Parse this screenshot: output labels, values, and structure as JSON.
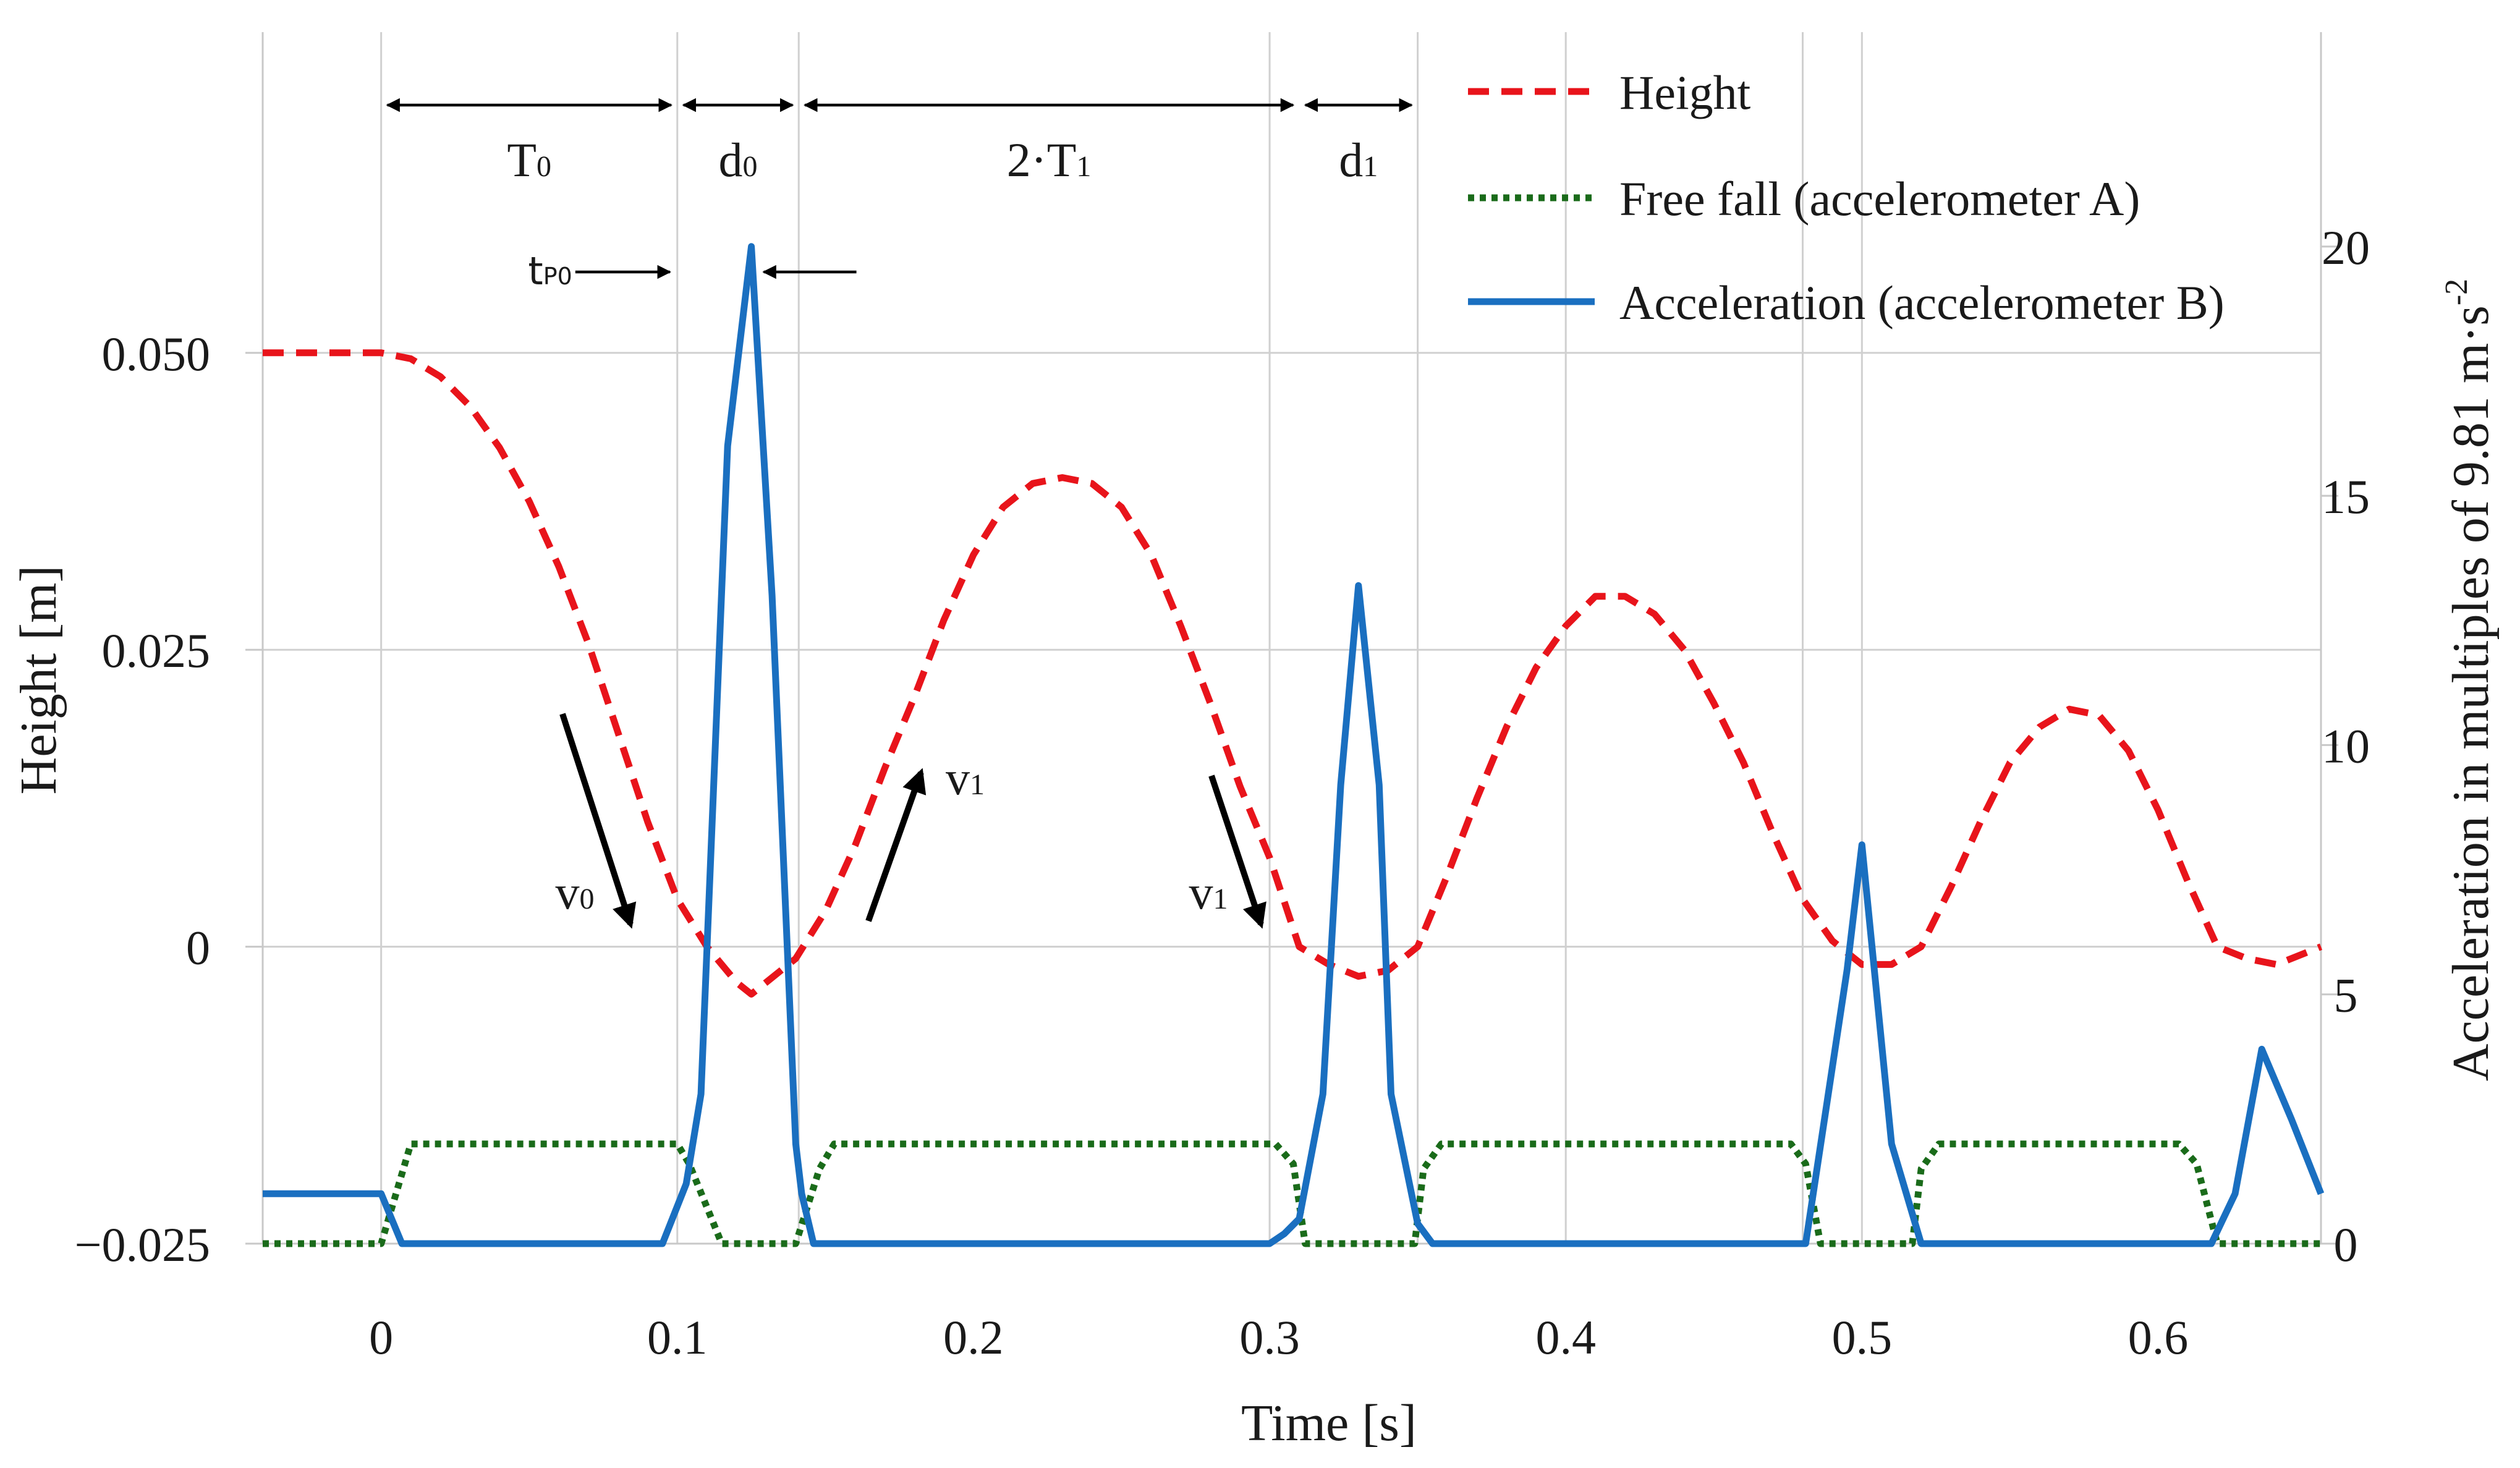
{
  "chart_data": {
    "type": "line",
    "xlabel": "Time [s]",
    "ylabel_left": "Height [m]",
    "ylabel_right": "Acceleration in multiples of 9.81 m·s",
    "ylabel_right_sup": "-2",
    "xlim": [
      -0.04,
      0.655
    ],
    "ylim_left": [
      -0.025,
      0.077
    ],
    "ylim_right": [
      0,
      24.3
    ],
    "x_ticks": [
      {
        "value": 0,
        "label": "0"
      },
      {
        "value": 0.1,
        "label": "0.1"
      },
      {
        "value": 0.2,
        "label": "0.2"
      },
      {
        "value": 0.3,
        "label": "0.3"
      },
      {
        "value": 0.4,
        "label": "0.4"
      },
      {
        "value": 0.5,
        "label": "0.5"
      },
      {
        "value": 0.6,
        "label": "0.6"
      }
    ],
    "y_left_ticks": [
      {
        "value": 0.05,
        "label": "0.050"
      },
      {
        "value": 0.025,
        "label": "0.025"
      },
      {
        "value": 0,
        "label": "0"
      },
      {
        "value": -0.025,
        "label": "−0.025"
      }
    ],
    "y_right_ticks": [
      {
        "value": 20,
        "label": "20"
      },
      {
        "value": 15,
        "label": "15"
      },
      {
        "value": 10,
        "label": "10"
      },
      {
        "value": 5,
        "label": "5"
      },
      {
        "value": 0,
        "label": "0"
      }
    ],
    "vertical_gridlines": [
      0,
      0.1,
      0.141,
      0.3,
      0.35,
      0.4,
      0.48,
      0.5
    ],
    "series": [
      {
        "name": "Height",
        "axis": "left",
        "style": "dashed",
        "color": "#e8141b",
        "x": [
          -0.04,
          0,
          0.01,
          0.02,
          0.03,
          0.04,
          0.05,
          0.06,
          0.07,
          0.08,
          0.09,
          0.1,
          0.11,
          0.12,
          0.125,
          0.13,
          0.14,
          0.15,
          0.16,
          0.17,
          0.18,
          0.19,
          0.2,
          0.21,
          0.22,
          0.23,
          0.24,
          0.25,
          0.26,
          0.27,
          0.28,
          0.29,
          0.3,
          0.31,
          0.32,
          0.33,
          0.34,
          0.35,
          0.36,
          0.37,
          0.38,
          0.39,
          0.4,
          0.41,
          0.42,
          0.43,
          0.44,
          0.45,
          0.46,
          0.47,
          0.48,
          0.49,
          0.5,
          0.51,
          0.52,
          0.53,
          0.54,
          0.55,
          0.56,
          0.57,
          0.58,
          0.59,
          0.6,
          0.61,
          0.62,
          0.63,
          0.64,
          0.655
        ],
        "y": [
          0.05,
          0.05,
          0.0495,
          0.048,
          0.0455,
          0.042,
          0.0375,
          0.032,
          0.0255,
          0.018,
          0.0105,
          0.004,
          0.0,
          -0.003,
          -0.004,
          -0.003,
          -0.001,
          0.003,
          0.0085,
          0.015,
          0.021,
          0.0275,
          0.033,
          0.037,
          0.039,
          0.0395,
          0.039,
          0.037,
          0.033,
          0.027,
          0.0205,
          0.0135,
          0.0075,
          0.0,
          -0.0015,
          -0.0025,
          -0.002,
          0.0,
          0.006,
          0.0125,
          0.0185,
          0.0235,
          0.027,
          0.0295,
          0.0295,
          0.028,
          0.025,
          0.0205,
          0.0155,
          0.0095,
          0.004,
          0.0005,
          -0.0015,
          -0.0015,
          0.0,
          0.005,
          0.0105,
          0.0155,
          0.0185,
          0.02,
          0.0195,
          0.0165,
          0.0115,
          0.0055,
          0.0,
          -0.001,
          -0.0015,
          0.0
        ]
      },
      {
        "name": "Free fall (accelerometer A)",
        "axis": "right",
        "style": "dotted",
        "color": "#1a6b1a",
        "x": [
          -0.04,
          0.0,
          0.01,
          0.1,
          0.104,
          0.115,
          0.14,
          0.148,
          0.153,
          0.302,
          0.308,
          0.312,
          0.349,
          0.352,
          0.358,
          0.476,
          0.481,
          0.486,
          0.517,
          0.52,
          0.526,
          0.607,
          0.613,
          0.62,
          0.655
        ],
        "y": [
          0,
          0,
          2.0,
          2.0,
          1.6,
          0,
          0,
          1.5,
          2.0,
          2.0,
          1.6,
          0,
          0,
          1.5,
          2.0,
          2.0,
          1.6,
          0,
          0,
          1.5,
          2.0,
          2.0,
          1.6,
          0,
          0
        ]
      },
      {
        "name": "Acceleration (accelerometer B)",
        "axis": "right",
        "style": "solid",
        "color": "#1a6fc0",
        "x": [
          -0.04,
          0.0,
          0.007,
          0.095,
          0.103,
          0.108,
          0.117,
          0.125,
          0.132,
          0.14,
          0.142,
          0.146,
          0.3,
          0.305,
          0.31,
          0.318,
          0.324,
          0.33,
          0.337,
          0.341,
          0.35,
          0.355,
          0.481,
          0.495,
          0.5,
          0.51,
          0.52,
          0.525,
          0.618,
          0.626,
          0.635,
          0.645,
          0.655
        ],
        "y": [
          1.0,
          1.0,
          0.0,
          0.0,
          1.2,
          3.0,
          16.0,
          20.0,
          13.0,
          2.0,
          1.0,
          0.0,
          0.0,
          0.2,
          0.5,
          3.0,
          9.2,
          13.2,
          9.2,
          3.0,
          0.4,
          0.0,
          0.0,
          5.5,
          8.0,
          2.0,
          0.0,
          0.0,
          0.0,
          1.0,
          3.9,
          2.5,
          1.0
        ]
      }
    ],
    "annotations": {
      "intervals": [
        {
          "label": "T",
          "sub": "0",
          "x_start": 0.0,
          "x_end": 0.1
        },
        {
          "label": "d",
          "sub": "0",
          "x_start": 0.1,
          "x_end": 0.141
        },
        {
          "label": "2·T",
          "sub": "1",
          "x_start": 0.141,
          "x_end": 0.31
        },
        {
          "label": "d",
          "sub": "1",
          "x_start": 0.31,
          "x_end": 0.35
        }
      ],
      "pulse_marker": {
        "label": "t",
        "sub": "P0",
        "x_left": 0.1,
        "x_right": 0.125
      },
      "velocity_arrows": [
        {
          "label": "v",
          "sub": "0",
          "direction": "down",
          "x": 0.065
        },
        {
          "label": "v",
          "sub": "1",
          "direction": "up",
          "x": 0.17
        },
        {
          "label": "v",
          "sub": "1",
          "direction": "down",
          "x": 0.285
        }
      ]
    },
    "legend": {
      "position": "top-right",
      "entries": [
        "Height",
        "Free fall (accelerometer A)",
        "Acceleration (accelerometer B)"
      ]
    }
  }
}
